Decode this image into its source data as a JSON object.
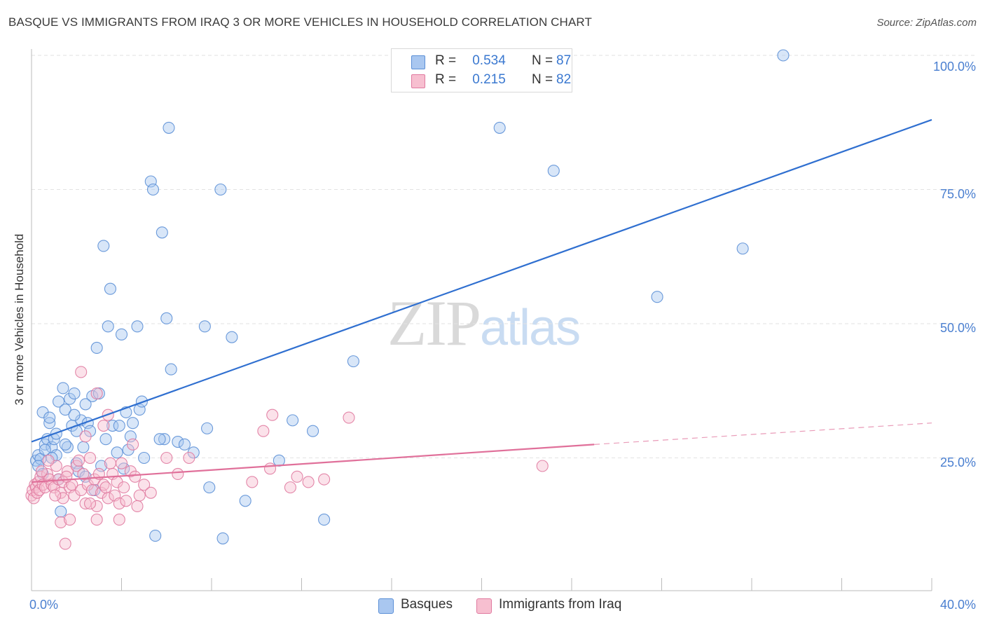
{
  "title": "BASQUE VS IMMIGRANTS FROM IRAQ 3 OR MORE VEHICLES IN HOUSEHOLD CORRELATION CHART",
  "source": "Source: ZipAtlas.com",
  "watermark": {
    "zip": "ZIP",
    "atlas": "atlas"
  },
  "legend": {
    "r_label": "R =",
    "n_label": "N =",
    "rows": [
      {
        "r": "0.534",
        "n": "87",
        "color": "#a9c7f0",
        "border": "#5b8fd6"
      },
      {
        "r": "0.215",
        "n": "82",
        "color": "#f7bfd0",
        "border": "#e07aa0"
      }
    ]
  },
  "bottom_legend": [
    "Basques",
    "Immigrants from Iraq"
  ],
  "chart_data": {
    "type": "scatter",
    "title": "BASQUE VS IMMIGRANTS FROM IRAQ 3 OR MORE VEHICLES IN HOUSEHOLD CORRELATION CHART",
    "xlabel": "",
    "ylabel": "3 or more Vehicles in Household",
    "xlim": [
      0,
      40
    ],
    "ylim": [
      0,
      103
    ],
    "x_tick_labels": [
      "0.0%",
      "40.0%"
    ],
    "y_ticks": [
      25,
      50,
      75,
      100
    ],
    "y_tick_labels": [
      "25.0%",
      "50.0%",
      "75.0%",
      "100.0%"
    ],
    "grid": true,
    "legend_position": "top-center",
    "series": [
      {
        "name": "Basques",
        "color": "#5b8fd6",
        "fill": "#a9c7f0",
        "trend": {
          "x": [
            0,
            40
          ],
          "y": [
            28.0,
            88.0
          ],
          "color": "#2f6fd0"
        },
        "points": [
          [
            0.2,
            24.5
          ],
          [
            0.3,
            25.5
          ],
          [
            0.4,
            24.8
          ],
          [
            0.5,
            33.5
          ],
          [
            0.6,
            27.5
          ],
          [
            0.7,
            28.5
          ],
          [
            0.8,
            31.5
          ],
          [
            0.9,
            27.0
          ],
          [
            1.0,
            28.5
          ],
          [
            1.1,
            25.5
          ],
          [
            1.2,
            35.5
          ],
          [
            1.3,
            15.0
          ],
          [
            1.4,
            38.0
          ],
          [
            1.5,
            34.0
          ],
          [
            1.6,
            27.0
          ],
          [
            1.7,
            36.0
          ],
          [
            1.8,
            31.0
          ],
          [
            1.9,
            37.0
          ],
          [
            2.0,
            24.0
          ],
          [
            2.1,
            22.5
          ],
          [
            2.2,
            32.0
          ],
          [
            2.3,
            27.0
          ],
          [
            2.4,
            21.5
          ],
          [
            2.5,
            31.5
          ],
          [
            2.7,
            36.5
          ],
          [
            2.8,
            19.0
          ],
          [
            2.9,
            45.5
          ],
          [
            3.0,
            37.0
          ],
          [
            3.1,
            23.5
          ],
          [
            3.2,
            64.5
          ],
          [
            3.4,
            49.5
          ],
          [
            3.5,
            56.5
          ],
          [
            3.6,
            31.0
          ],
          [
            3.8,
            26.0
          ],
          [
            4.0,
            48.0
          ],
          [
            4.1,
            23.0
          ],
          [
            4.2,
            33.5
          ],
          [
            4.4,
            29.0
          ],
          [
            4.5,
            31.5
          ],
          [
            4.7,
            49.5
          ],
          [
            4.8,
            34.0
          ],
          [
            5.3,
            76.5
          ],
          [
            5.4,
            75.0
          ],
          [
            5.5,
            10.5
          ],
          [
            5.8,
            67.0
          ],
          [
            5.9,
            28.5
          ],
          [
            6.0,
            51.0
          ],
          [
            6.1,
            86.5
          ],
          [
            6.2,
            41.5
          ],
          [
            6.5,
            28.0
          ],
          [
            6.8,
            27.5
          ],
          [
            7.7,
            49.5
          ],
          [
            7.8,
            30.5
          ],
          [
            7.9,
            19.5
          ],
          [
            8.4,
            75.0
          ],
          [
            8.5,
            10.0
          ],
          [
            8.9,
            47.5
          ],
          [
            9.5,
            17.0
          ],
          [
            11.0,
            24.5
          ],
          [
            11.6,
            32.0
          ],
          [
            12.5,
            30.0
          ],
          [
            13.0,
            13.5
          ],
          [
            14.3,
            43.0
          ],
          [
            20.8,
            86.5
          ],
          [
            23.2,
            78.5
          ],
          [
            27.8,
            55.0
          ],
          [
            31.6,
            64.0
          ],
          [
            33.4,
            100.0
          ],
          [
            0.3,
            23.5
          ],
          [
            0.9,
            25.0
          ],
          [
            1.5,
            27.5
          ],
          [
            2.6,
            30.0
          ],
          [
            3.3,
            28.5
          ],
          [
            5.0,
            25.0
          ],
          [
            0.6,
            26.5
          ],
          [
            1.9,
            33.0
          ],
          [
            2.4,
            35.0
          ],
          [
            4.9,
            35.5
          ],
          [
            0.5,
            22.0
          ],
          [
            1.2,
            21.0
          ],
          [
            2.0,
            30.0
          ],
          [
            3.9,
            31.0
          ],
          [
            5.7,
            28.5
          ],
          [
            7.2,
            26.0
          ],
          [
            1.1,
            29.5
          ],
          [
            0.8,
            32.5
          ],
          [
            4.3,
            26.5
          ]
        ]
      },
      {
        "name": "Immigrants from Iraq",
        "color": "#e07aa0",
        "fill": "#f7bfd0",
        "trend": {
          "x": [
            0,
            25
          ],
          "y": [
            20.5,
            27.5
          ],
          "color": "#e0709a",
          "dashed_to": [
            40,
            31.5
          ]
        },
        "points": [
          [
            0.0,
            18.0
          ],
          [
            0.05,
            19.0
          ],
          [
            0.1,
            17.5
          ],
          [
            0.15,
            20.0
          ],
          [
            0.2,
            19.5
          ],
          [
            0.25,
            18.5
          ],
          [
            0.3,
            20.5
          ],
          [
            0.35,
            19.0
          ],
          [
            0.4,
            21.5
          ],
          [
            0.5,
            20.0
          ],
          [
            0.6,
            19.5
          ],
          [
            0.7,
            22.0
          ],
          [
            0.8,
            21.0
          ],
          [
            0.9,
            20.0
          ],
          [
            1.0,
            19.5
          ],
          [
            1.1,
            23.5
          ],
          [
            1.2,
            21.0
          ],
          [
            1.3,
            18.5
          ],
          [
            1.4,
            20.5
          ],
          [
            1.5,
            9.0
          ],
          [
            1.6,
            22.5
          ],
          [
            1.7,
            19.5
          ],
          [
            1.8,
            20.0
          ],
          [
            1.9,
            18.0
          ],
          [
            2.0,
            23.5
          ],
          [
            2.1,
            24.5
          ],
          [
            2.2,
            19.0
          ],
          [
            2.3,
            22.0
          ],
          [
            2.4,
            16.5
          ],
          [
            2.5,
            20.0
          ],
          [
            2.6,
            25.0
          ],
          [
            2.7,
            19.0
          ],
          [
            2.8,
            21.0
          ],
          [
            2.9,
            16.0
          ],
          [
            3.0,
            22.0
          ],
          [
            3.1,
            18.5
          ],
          [
            3.2,
            20.0
          ],
          [
            3.3,
            19.5
          ],
          [
            3.4,
            17.5
          ],
          [
            3.5,
            24.0
          ],
          [
            3.6,
            22.0
          ],
          [
            3.7,
            18.0
          ],
          [
            3.8,
            20.5
          ],
          [
            3.9,
            16.5
          ],
          [
            4.0,
            24.0
          ],
          [
            4.2,
            17.0
          ],
          [
            4.4,
            22.5
          ],
          [
            4.6,
            21.5
          ],
          [
            4.8,
            18.0
          ],
          [
            5.0,
            20.0
          ],
          [
            2.2,
            41.0
          ],
          [
            2.9,
            37.0
          ],
          [
            3.4,
            33.0
          ],
          [
            4.5,
            27.5
          ],
          [
            3.2,
            31.0
          ],
          [
            2.4,
            29.0
          ],
          [
            6.0,
            25.0
          ],
          [
            6.5,
            22.0
          ],
          [
            7.0,
            25.0
          ],
          [
            9.8,
            20.5
          ],
          [
            10.3,
            30.0
          ],
          [
            10.6,
            23.0
          ],
          [
            10.7,
            33.0
          ],
          [
            11.5,
            19.5
          ],
          [
            11.8,
            21.5
          ],
          [
            12.3,
            20.5
          ],
          [
            13.0,
            21.0
          ],
          [
            14.1,
            32.5
          ],
          [
            22.7,
            23.5
          ],
          [
            1.3,
            13.0
          ],
          [
            1.7,
            13.5
          ],
          [
            2.9,
            13.5
          ],
          [
            3.9,
            13.5
          ],
          [
            4.7,
            16.0
          ],
          [
            1.4,
            17.5
          ],
          [
            2.6,
            16.5
          ],
          [
            0.45,
            22.5
          ],
          [
            0.75,
            24.5
          ],
          [
            1.05,
            18.0
          ],
          [
            1.55,
            21.5
          ],
          [
            4.1,
            19.5
          ],
          [
            5.3,
            18.5
          ]
        ]
      }
    ]
  }
}
